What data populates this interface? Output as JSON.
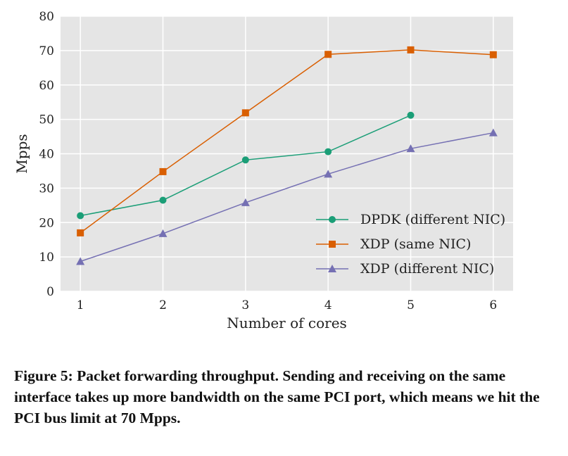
{
  "chart_data": {
    "type": "line",
    "x": [
      1,
      2,
      3,
      4,
      5,
      6
    ],
    "xticks": [
      "1",
      "2",
      "3",
      "4",
      "5",
      "6"
    ],
    "xlabel": "Number of cores",
    "ylabel": "Mpps",
    "ylim": [
      0,
      80
    ],
    "yticks": [
      "0",
      "10",
      "20",
      "30",
      "40",
      "50",
      "60",
      "70",
      "80"
    ],
    "grid": true,
    "legend_position": "bottom-right",
    "series": [
      {
        "name": "DPDK (different NIC)",
        "color": "#1b9e77",
        "marker": "circle",
        "x": [
          1,
          2,
          3,
          4,
          5
        ],
        "values": [
          22,
          26.5,
          38.2,
          40.6,
          51.2
        ]
      },
      {
        "name": "XDP (same NIC)",
        "color": "#d95f02",
        "marker": "square",
        "x": [
          1,
          2,
          3,
          4,
          5,
          6
        ],
        "values": [
          17,
          34.8,
          51.9,
          68.9,
          70.2,
          68.8
        ]
      },
      {
        "name": "XDP (different NIC)",
        "color": "#7570b3",
        "marker": "triangle",
        "x": [
          1,
          2,
          3,
          4,
          5,
          6
        ],
        "values": [
          8.7,
          16.8,
          25.8,
          34.1,
          41.5,
          46.1
        ]
      }
    ]
  },
  "caption": "Figure 5: Packet forwarding throughput. Sending and receiving on the same interface takes up more bandwidth on the same PCI port, which means we hit the PCI bus limit at 70 Mpps."
}
